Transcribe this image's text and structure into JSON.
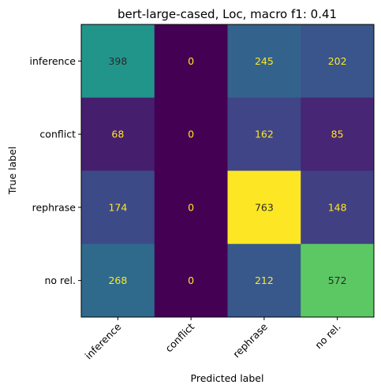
{
  "chart_data": {
    "type": "heatmap",
    "title": "bert-large-cased, Loc, macro f1: 0.41",
    "xlabel": "Predicted label",
    "ylabel": "True label",
    "x_categories": [
      "inference",
      "conflict",
      "rephrase",
      "no rel."
    ],
    "y_categories": [
      "inference",
      "conflict",
      "rephrase",
      "no rel."
    ],
    "values": [
      [
        398,
        0,
        245,
        202
      ],
      [
        68,
        0,
        162,
        85
      ],
      [
        174,
        0,
        763,
        148
      ],
      [
        268,
        0,
        212,
        572
      ]
    ],
    "value_range": [
      0,
      763
    ],
    "colormap": "viridis",
    "label_colors": {
      "on_dark": "#fde725",
      "on_light": "#2a2a2a"
    },
    "grid": false
  }
}
